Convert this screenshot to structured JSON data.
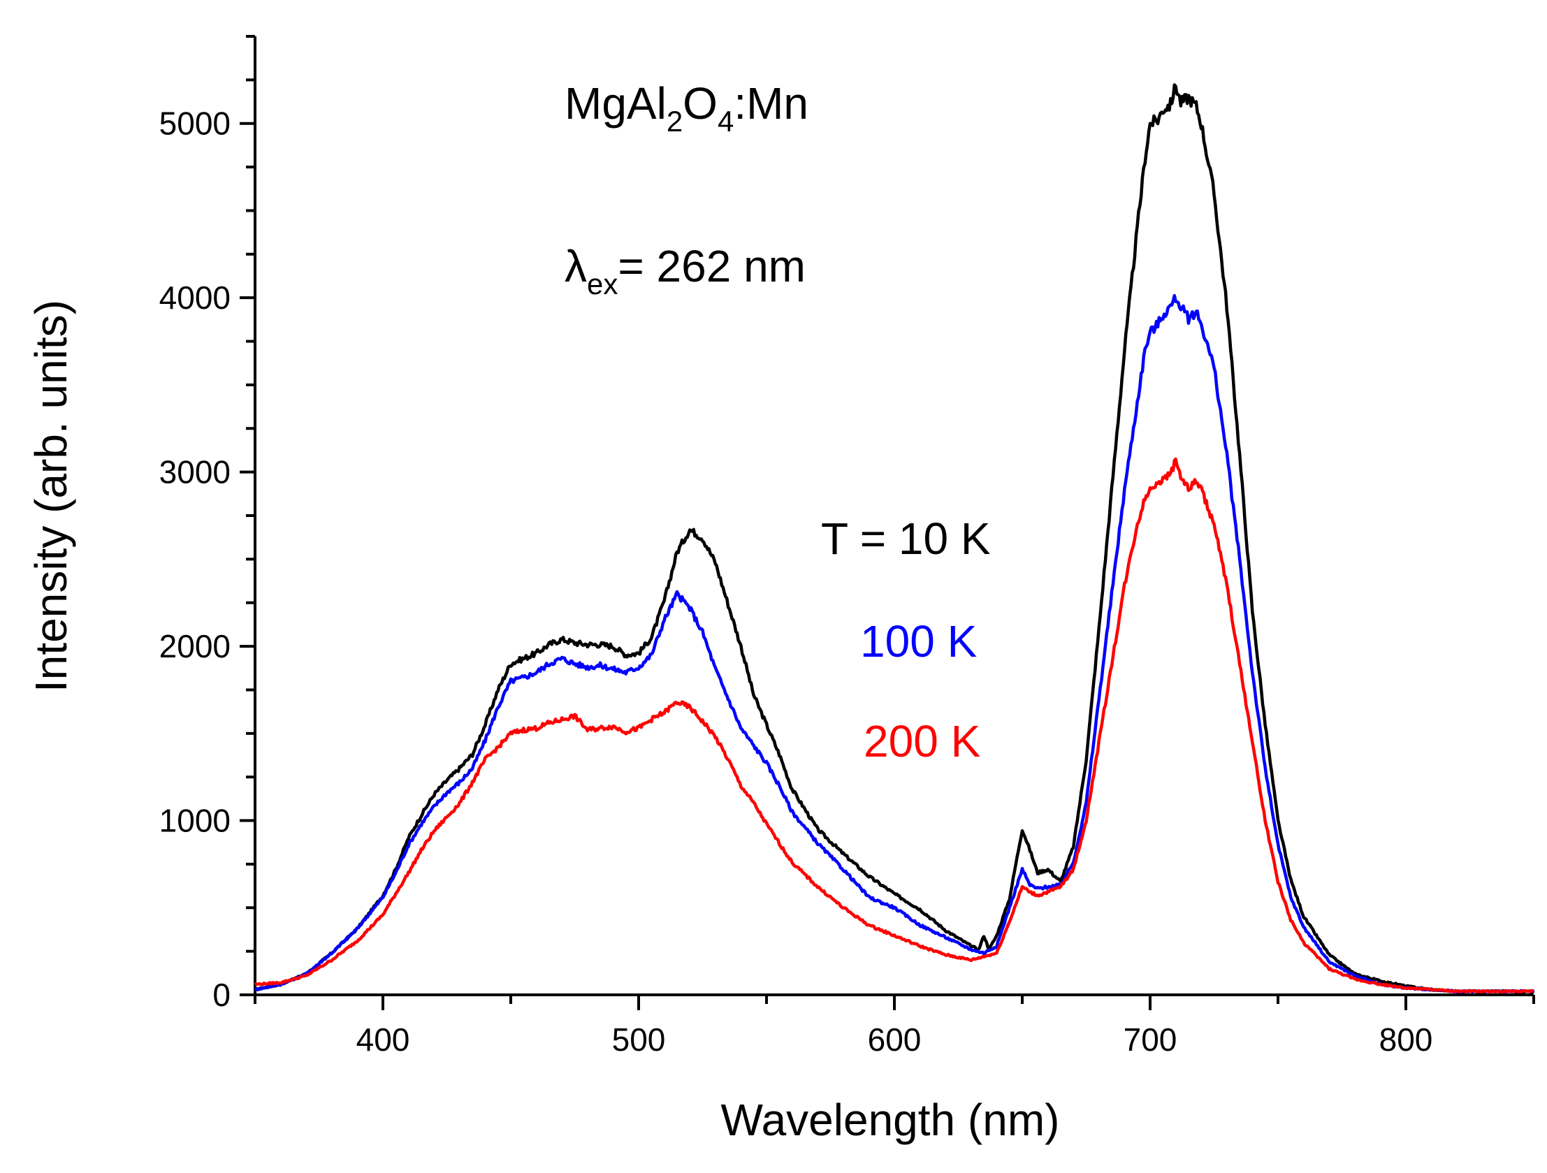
{
  "chart_data": {
    "type": "line",
    "title": "",
    "xlabel": "Wavelength (nm)",
    "ylabel": "Intensity (arb. units)",
    "xlim": [
      350,
      850
    ],
    "ylim": [
      0,
      5500
    ],
    "x_ticks": [
      400,
      500,
      600,
      700,
      800
    ],
    "x_tick_labels": [
      "400",
      "500",
      "600",
      "700",
      "800"
    ],
    "y_ticks": [
      0,
      1000,
      2000,
      3000,
      4000,
      5000
    ],
    "y_tick_labels": [
      "0",
      "1000",
      "2000",
      "3000",
      "4000",
      "5000"
    ],
    "grid": false,
    "annotations": {
      "material": {
        "main": "MgAl",
        "sub1": "2",
        "mid": "O",
        "sub2": "4",
        "end": ":Mn"
      },
      "excitation": {
        "symbol": "λ",
        "sub": "ex",
        "rest": "= 262 nm"
      }
    },
    "legend_placement": "center-right",
    "series": [
      {
        "name": "T = 10 K",
        "color": "#000000",
        "x": [
          350,
          360,
          370,
          380,
          390,
          400,
          405,
          410,
          415,
          420,
          425,
          430,
          435,
          440,
          445,
          450,
          455,
          460,
          465,
          470,
          475,
          480,
          485,
          490,
          495,
          500,
          505,
          510,
          515,
          520,
          525,
          530,
          535,
          540,
          545,
          550,
          555,
          560,
          570,
          580,
          590,
          600,
          610,
          620,
          630,
          633,
          635,
          637,
          640,
          645,
          650,
          653,
          656,
          660,
          665,
          670,
          675,
          680,
          685,
          690,
          695,
          698,
          700,
          703,
          705,
          708,
          710,
          712,
          715,
          718,
          720,
          725,
          730,
          735,
          740,
          745,
          750,
          755,
          760,
          770,
          780,
          790,
          800,
          810,
          820,
          830,
          840,
          850
        ],
        "y": [
          30,
          60,
          120,
          240,
          380,
          570,
          720,
          900,
          1030,
          1150,
          1230,
          1300,
          1380,
          1550,
          1750,
          1900,
          1930,
          1960,
          2010,
          2040,
          2020,
          2010,
          2010,
          2000,
          1950,
          1960,
          2050,
          2260,
          2540,
          2670,
          2620,
          2480,
          2240,
          2000,
          1720,
          1550,
          1380,
          1180,
          950,
          810,
          680,
          580,
          490,
          370,
          280,
          260,
          340,
          260,
          340,
          550,
          950,
          830,
          700,
          720,
          650,
          850,
          1350,
          2100,
          2900,
          3700,
          4400,
          4800,
          5000,
          5020,
          5080,
          5110,
          5220,
          5120,
          5150,
          5100,
          5000,
          4600,
          3950,
          3100,
          2200,
          1550,
          1000,
          660,
          450,
          230,
          120,
          80,
          50,
          30,
          20,
          20,
          20,
          20
        ]
      },
      {
        "name": "100 K",
        "color": "#0000ff",
        "x": [
          350,
          360,
          370,
          380,
          390,
          400,
          405,
          410,
          415,
          420,
          425,
          430,
          435,
          440,
          445,
          450,
          455,
          460,
          465,
          470,
          475,
          480,
          485,
          490,
          495,
          500,
          505,
          510,
          515,
          520,
          525,
          530,
          535,
          540,
          545,
          550,
          555,
          560,
          570,
          580,
          590,
          600,
          610,
          620,
          630,
          635,
          640,
          645,
          650,
          653,
          656,
          660,
          665,
          670,
          675,
          680,
          685,
          690,
          695,
          698,
          700,
          703,
          705,
          708,
          710,
          712,
          715,
          718,
          720,
          725,
          730,
          735,
          740,
          745,
          750,
          755,
          760,
          770,
          780,
          790,
          800,
          810,
          820,
          830,
          840,
          850
        ],
        "y": [
          30,
          60,
          120,
          240,
          380,
          560,
          700,
          860,
          980,
          1080,
          1160,
          1220,
          1300,
          1460,
          1650,
          1800,
          1820,
          1850,
          1900,
          1930,
          1900,
          1880,
          1890,
          1870,
          1850,
          1880,
          1950,
          2150,
          2300,
          2220,
          2080,
          1870,
          1700,
          1530,
          1430,
          1330,
          1200,
          1050,
          870,
          720,
          560,
          500,
          400,
          330,
          260,
          240,
          280,
          500,
          720,
          630,
          610,
          620,
          630,
          760,
          1100,
          1700,
          2300,
          2900,
          3400,
          3700,
          3800,
          3850,
          3900,
          3950,
          4000,
          3950,
          3880,
          3920,
          3850,
          3600,
          3100,
          2500,
          1850,
          1300,
          860,
          560,
          390,
          190,
          110,
          60,
          40,
          30,
          20,
          20,
          20,
          20
        ]
      },
      {
        "name": "200 K",
        "color": "#ff0000",
        "x": [
          350,
          360,
          370,
          380,
          390,
          400,
          405,
          410,
          415,
          420,
          425,
          430,
          435,
          440,
          445,
          450,
          455,
          460,
          465,
          470,
          475,
          480,
          485,
          490,
          495,
          500,
          505,
          510,
          515,
          520,
          525,
          530,
          535,
          540,
          545,
          550,
          555,
          560,
          570,
          580,
          590,
          600,
          610,
          620,
          630,
          635,
          640,
          645,
          650,
          653,
          656,
          660,
          665,
          670,
          675,
          680,
          685,
          690,
          695,
          698,
          700,
          703,
          705,
          708,
          710,
          712,
          715,
          718,
          720,
          725,
          730,
          735,
          740,
          745,
          750,
          755,
          760,
          770,
          780,
          790,
          800,
          810,
          820,
          830,
          840,
          850
        ],
        "y": [
          60,
          70,
          110,
          200,
          310,
          460,
          580,
          700,
          830,
          940,
          1020,
          1100,
          1220,
          1350,
          1420,
          1500,
          1520,
          1530,
          1560,
          1580,
          1600,
          1520,
          1530,
          1540,
          1510,
          1530,
          1580,
          1620,
          1680,
          1650,
          1570,
          1480,
          1350,
          1200,
          1100,
          980,
          870,
          760,
          620,
          500,
          400,
          340,
          280,
          230,
          200,
          220,
          240,
          420,
          620,
          590,
          570,
          590,
          620,
          720,
          1000,
          1450,
          1900,
          2350,
          2700,
          2850,
          2900,
          2950,
          2950,
          3000,
          3060,
          2980,
          2900,
          2950,
          2900,
          2700,
          2350,
          1900,
          1450,
          1000,
          650,
          430,
          300,
          150,
          90,
          60,
          40,
          30,
          20,
          20,
          20,
          20
        ]
      }
    ]
  }
}
